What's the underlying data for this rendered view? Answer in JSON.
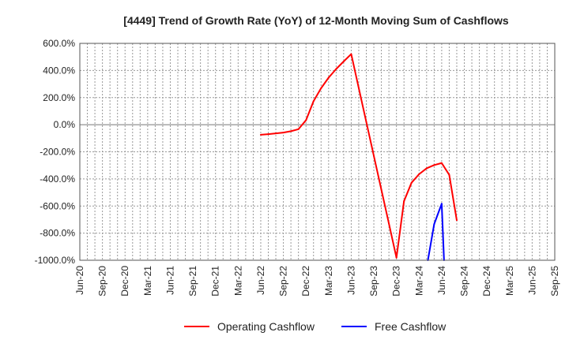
{
  "chart_data": {
    "type": "line",
    "title": "[4449]  Trend of Growth Rate (YoY) of 12-Month Moving Sum of Cashflows",
    "xlabel": "",
    "ylabel": "",
    "ylim": [
      -1000,
      600
    ],
    "yticks": [
      600,
      400,
      200,
      0,
      -200,
      -400,
      -600,
      -800,
      -1000
    ],
    "ytick_labels": [
      "600.0%",
      "400.0%",
      "200.0%",
      "0.0%",
      "-200.0%",
      "-400.0%",
      "-600.0%",
      "-800.0%",
      "-1000.0%"
    ],
    "x_start": "Jun-20",
    "x_months": 63,
    "xtick_labels": [
      "Jun-20",
      "Sep-20",
      "Dec-20",
      "Mar-21",
      "Jun-21",
      "Sep-21",
      "Dec-21",
      "Mar-22",
      "Jun-22",
      "Sep-22",
      "Dec-22",
      "Mar-23",
      "Jun-23",
      "Sep-23",
      "Dec-23",
      "Mar-24",
      "Jun-24",
      "Sep-24",
      "Dec-24",
      "Mar-25",
      "Jun-25",
      "Sep-25"
    ],
    "grid": true,
    "legend_position": "bottom",
    "series": [
      {
        "name": "Operating Cashflow",
        "color": "#ff0000",
        "start_month_index": 24,
        "values": [
          -74,
          -70,
          -64,
          -58,
          -48,
          -33,
          33,
          173,
          269,
          347,
          411,
          467,
          521,
          270,
          20,
          -230,
          -480,
          -730,
          -981,
          -564,
          -428,
          -365,
          -322,
          -298,
          -283,
          -370,
          -705
        ]
      },
      {
        "name": "Free Cashflow",
        "color": "#0000ff",
        "start_month_index": 46,
        "values": [
          -1055,
          -734,
          -583,
          -1926
        ]
      }
    ]
  }
}
